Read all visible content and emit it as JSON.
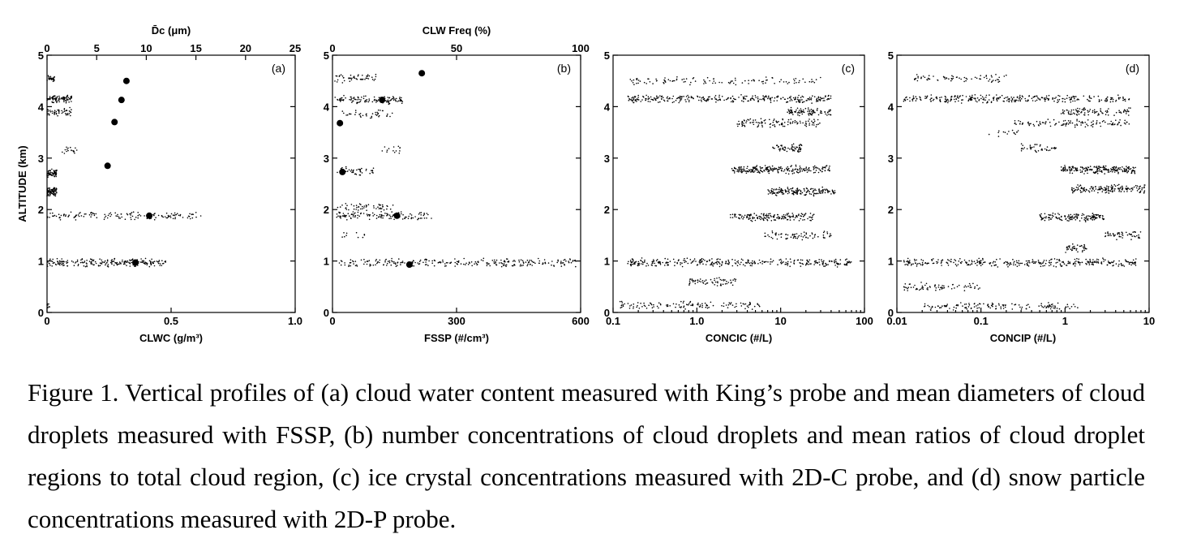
{
  "chart_data": [
    {
      "type": "scatter",
      "panel": "(a)",
      "xlabel": "CLWC (g/m³)",
      "x2label": "D̄c (μm)",
      "ylabel": "ALTITUDE (km)",
      "xlim": [
        0,
        1.0
      ],
      "x2lim": [
        0,
        25
      ],
      "ylim": [
        0,
        5
      ],
      "xticks": [
        "0",
        "0.5",
        "1.0"
      ],
      "xtick_values": [
        0,
        0.5,
        1.0
      ],
      "x2ticks": [
        "0",
        "5",
        "10",
        "15",
        "20",
        "25"
      ],
      "x2tick_values": [
        0,
        5,
        10,
        15,
        20,
        25
      ],
      "yticks": [
        "0",
        "1",
        "2",
        "3",
        "4",
        "5"
      ],
      "yscale": "linear",
      "series": [
        {
          "marker": "large-dot",
          "axis": "top",
          "x": [
            8,
            7.5,
            6.8,
            6.1,
            10.3,
            8.9
          ],
          "y": [
            4.5,
            4.13,
            3.7,
            2.85,
            1.88,
            0.97
          ]
        }
      ],
      "scatter_bands": [
        {
          "y": 4.55,
          "xmin": 0.0,
          "xmax": 0.03,
          "n": 30
        },
        {
          "y": 4.15,
          "xmin": 0.0,
          "xmax": 0.1,
          "n": 90
        },
        {
          "y": 3.9,
          "xmin": 0.0,
          "xmax": 0.1,
          "n": 50
        },
        {
          "y": 3.15,
          "xmin": 0.06,
          "xmax": 0.12,
          "n": 18
        },
        {
          "y": 2.7,
          "xmin": 0.0,
          "xmax": 0.04,
          "n": 60
        },
        {
          "y": 2.35,
          "xmin": 0.0,
          "xmax": 0.04,
          "n": 80
        },
        {
          "y": 1.88,
          "xmin": 0.0,
          "xmax": 0.62,
          "n": 140
        },
        {
          "y": 0.97,
          "xmin": 0.0,
          "xmax": 0.48,
          "n": 220
        },
        {
          "y": 0.15,
          "xmin": 0.0,
          "xmax": 0.01,
          "n": 8
        }
      ]
    },
    {
      "type": "scatter",
      "panel": "(b)",
      "xlabel": "FSSP (#/cm³)",
      "x2label": "CLW Freq (%)",
      "xlim": [
        0,
        600
      ],
      "x2lim": [
        0,
        100
      ],
      "ylim": [
        0,
        5
      ],
      "xticks": [
        "0",
        "300",
        "600"
      ],
      "xtick_values": [
        0,
        300,
        600
      ],
      "x2ticks": [
        "0",
        "50",
        "100"
      ],
      "x2tick_values": [
        0,
        50,
        100
      ],
      "yticks": [
        "0",
        "1",
        "2",
        "3",
        "4",
        "5"
      ],
      "yscale": "linear",
      "series": [
        {
          "marker": "large-dot",
          "axis": "top",
          "x": [
            36,
            20,
            3,
            4,
            26,
            31
          ],
          "y": [
            4.65,
            4.13,
            3.68,
            2.73,
            1.88,
            0.93
          ]
        }
      ],
      "scatter_bands": [
        {
          "y": 4.55,
          "xmin": 5,
          "xmax": 110,
          "n": 50
        },
        {
          "y": 4.13,
          "xmin": 5,
          "xmax": 170,
          "n": 110
        },
        {
          "y": 3.85,
          "xmin": 20,
          "xmax": 150,
          "n": 40
        },
        {
          "y": 3.15,
          "xmin": 120,
          "xmax": 165,
          "n": 14
        },
        {
          "y": 2.75,
          "xmin": 10,
          "xmax": 100,
          "n": 40
        },
        {
          "y": 2.05,
          "xmin": 10,
          "xmax": 150,
          "n": 50
        },
        {
          "y": 1.88,
          "xmin": 10,
          "xmax": 240,
          "n": 120
        },
        {
          "y": 1.5,
          "xmin": 15,
          "xmax": 80,
          "n": 10
        },
        {
          "y": 0.97,
          "xmin": 15,
          "xmax": 590,
          "n": 260
        }
      ]
    },
    {
      "type": "scatter",
      "panel": "(c)",
      "xlabel": "CONCIC (#/L)",
      "xlim": [
        0.1,
        100
      ],
      "ylim": [
        0,
        5
      ],
      "xscale": "log",
      "xticks": [
        "0.1",
        "1.0",
        "10",
        "100"
      ],
      "xtick_values": [
        0.1,
        1,
        10,
        100
      ],
      "yticks": [
        "0",
        "1",
        "2",
        "3",
        "4",
        "5"
      ],
      "series": [],
      "scatter_bands": [
        {
          "y": 4.5,
          "xmin": 0.16,
          "xmax": 30,
          "n": 110
        },
        {
          "y": 4.15,
          "xmin": 0.15,
          "xmax": 40,
          "n": 300
        },
        {
          "y": 3.9,
          "xmin": 12,
          "xmax": 40,
          "n": 90
        },
        {
          "y": 3.68,
          "xmin": 3,
          "xmax": 30,
          "n": 110
        },
        {
          "y": 3.2,
          "xmin": 8,
          "xmax": 18,
          "n": 60
        },
        {
          "y": 2.78,
          "xmin": 2.6,
          "xmax": 40,
          "n": 220
        },
        {
          "y": 2.35,
          "xmin": 7,
          "xmax": 45,
          "n": 160
        },
        {
          "y": 1.85,
          "xmin": 2.5,
          "xmax": 25,
          "n": 160
        },
        {
          "y": 1.5,
          "xmin": 6,
          "xmax": 40,
          "n": 70
        },
        {
          "y": 0.97,
          "xmin": 0.15,
          "xmax": 70,
          "n": 320
        },
        {
          "y": 0.6,
          "xmin": 0.8,
          "xmax": 3,
          "n": 60
        },
        {
          "y": 0.14,
          "xmin": 0.12,
          "xmax": 6,
          "n": 120
        }
      ]
    },
    {
      "type": "scatter",
      "panel": "(d)",
      "xlabel": "CONCIP (#/L)",
      "xlim": [
        0.01,
        10
      ],
      "ylim": [
        0,
        5
      ],
      "xscale": "log",
      "xticks": [
        "0.01",
        "0.1",
        "1",
        "10"
      ],
      "xtick_values": [
        0.01,
        0.1,
        1,
        10
      ],
      "yticks": [
        "0",
        "1",
        "2",
        "3",
        "4",
        "5"
      ],
      "series": [],
      "scatter_bands": [
        {
          "y": 4.55,
          "xmin": 0.013,
          "xmax": 0.2,
          "n": 70
        },
        {
          "y": 4.15,
          "xmin": 0.012,
          "xmax": 6,
          "n": 300
        },
        {
          "y": 3.9,
          "xmin": 0.9,
          "xmax": 6,
          "n": 90
        },
        {
          "y": 3.68,
          "xmin": 0.25,
          "xmax": 6,
          "n": 110
        },
        {
          "y": 3.5,
          "xmin": 0.12,
          "xmax": 0.3,
          "n": 15
        },
        {
          "y": 3.2,
          "xmin": 0.3,
          "xmax": 0.8,
          "n": 40
        },
        {
          "y": 2.78,
          "xmin": 0.9,
          "xmax": 7,
          "n": 200
        },
        {
          "y": 2.4,
          "xmin": 1.2,
          "xmax": 9,
          "n": 160
        },
        {
          "y": 1.85,
          "xmin": 0.5,
          "xmax": 3,
          "n": 140
        },
        {
          "y": 1.5,
          "xmin": 3,
          "xmax": 8,
          "n": 50
        },
        {
          "y": 1.25,
          "xmin": 1,
          "xmax": 1.8,
          "n": 40
        },
        {
          "y": 0.97,
          "xmin": 0.012,
          "xmax": 7,
          "n": 320
        },
        {
          "y": 0.5,
          "xmin": 0.012,
          "xmax": 0.1,
          "n": 70
        },
        {
          "y": 0.12,
          "xmin": 0.02,
          "xmax": 1.5,
          "n": 130
        }
      ]
    }
  ],
  "caption": "Figure 1. Vertical profiles of (a) cloud water content measured with King’s probe and mean diameters of cloud droplets measured with FSSP, (b) number concentrations of cloud droplets and mean ratios of cloud droplet regions to total cloud region, (c) ice crystal concentrations measured with 2D-C probe, and (d) snow particle concentrations measured with 2D-P probe."
}
